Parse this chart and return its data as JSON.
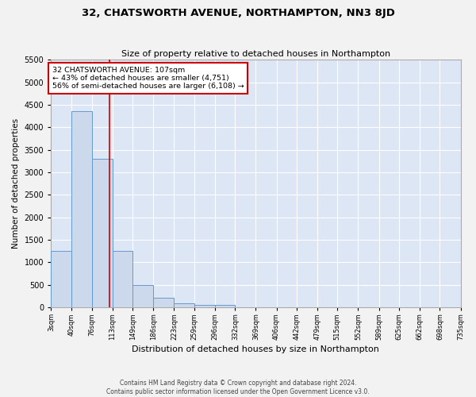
{
  "title": "32, CHATSWORTH AVENUE, NORTHAMPTON, NN3 8JD",
  "subtitle": "Size of property relative to detached houses in Northampton",
  "xlabel": "Distribution of detached houses by size in Northampton",
  "ylabel": "Number of detached properties",
  "bar_color": "#ccd9ed",
  "bar_edge_color": "#6699cc",
  "fig_facecolor": "#f2f2f2",
  "background_color": "#dce6f5",
  "grid_color": "#ffffff",
  "annotation_text": "32 CHATSWORTH AVENUE: 107sqm\n← 43% of detached houses are smaller (4,751)\n56% of semi-detached houses are larger (6,108) →",
  "annotation_box_color": "#ffffff",
  "annotation_box_edge_color": "#cc0000",
  "vline_color": "#cc0000",
  "property_size_sqm": 107,
  "footer": "Contains HM Land Registry data © Crown copyright and database right 2024.\nContains public sector information licensed under the Open Government Licence v3.0.",
  "bins": [
    3,
    40,
    76,
    113,
    149,
    186,
    223,
    259,
    296,
    332,
    369,
    406,
    442,
    479,
    515,
    552,
    589,
    625,
    662,
    698,
    735
  ],
  "bin_labels": [
    "3sqm",
    "40sqm",
    "76sqm",
    "113sqm",
    "149sqm",
    "186sqm",
    "223sqm",
    "259sqm",
    "296sqm",
    "332sqm",
    "369sqm",
    "406sqm",
    "442sqm",
    "479sqm",
    "515sqm",
    "552sqm",
    "589sqm",
    "625sqm",
    "662sqm",
    "698sqm",
    "735sqm"
  ],
  "bar_heights": [
    1260,
    4350,
    3300,
    1260,
    490,
    215,
    90,
    65,
    50,
    0,
    0,
    0,
    0,
    0,
    0,
    0,
    0,
    0,
    0,
    0
  ],
  "ylim": [
    0,
    5500
  ],
  "yticks": [
    0,
    500,
    1000,
    1500,
    2000,
    2500,
    3000,
    3500,
    4000,
    4500,
    5000,
    5500
  ],
  "title_fontsize": 9.5,
  "subtitle_fontsize": 8.0,
  "xlabel_fontsize": 8.0,
  "ylabel_fontsize": 7.5,
  "xtick_fontsize": 6.0,
  "ytick_fontsize": 7.0,
  "annotation_fontsize": 6.8,
  "footer_fontsize": 5.5
}
